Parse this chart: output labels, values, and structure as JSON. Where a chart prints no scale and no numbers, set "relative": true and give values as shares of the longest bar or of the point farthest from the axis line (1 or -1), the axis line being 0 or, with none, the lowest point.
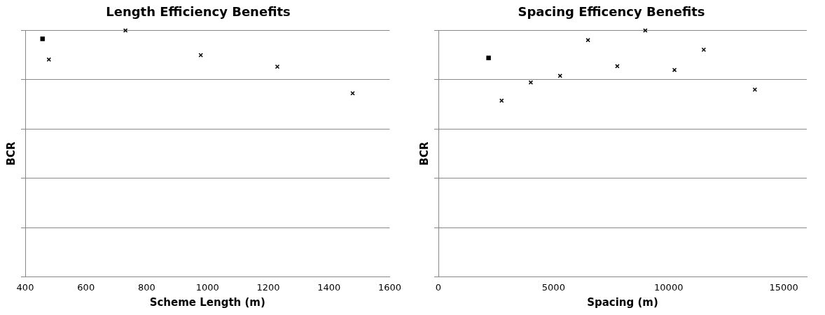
{
  "chart_data": [
    {
      "type": "scatter",
      "title": "Length Efficiency Benefits",
      "xlabel": "Scheme Length (m)",
      "ylabel": "BCR",
      "relative": true,
      "grid": "y",
      "legend": false,
      "marker": "cross",
      "xlim": [
        400,
        1600
      ],
      "xticks": [
        400,
        600,
        800,
        1000,
        1200,
        1400,
        1600
      ],
      "series": [
        {
          "color": "#000000",
          "marker": "square",
          "x": [
            457
          ],
          "values": [
            0.966
          ]
        },
        {
          "color": "#000000",
          "x": [
            478,
            730,
            978,
            1230,
            1478
          ],
          "values": [
            0.882,
            1,
            0.9,
            0.853,
            0.745
          ]
        }
      ]
    },
    {
      "type": "scatter",
      "title": "Spacing Efficency Benefits",
      "xlabel": "Spacing (m)",
      "ylabel": "BCR",
      "relative": true,
      "grid": "y",
      "legend": false,
      "marker": "cross",
      "xlim": [
        0,
        16000
      ],
      "xticks": [
        0,
        5000,
        10000,
        15000
      ],
      "series": [
        {
          "color": "#000000",
          "marker": "square",
          "x": [
            2178
          ],
          "values": [
            0.889
          ]
        },
        {
          "color": "#000000",
          "x": [
            2745,
            4013,
            5285,
            6497,
            7770,
            8985,
            10253,
            11525,
            13746
          ],
          "values": [
            0.715,
            0.789,
            0.816,
            0.961,
            0.855,
            1,
            0.84,
            0.922,
            0.76
          ]
        }
      ]
    }
  ]
}
